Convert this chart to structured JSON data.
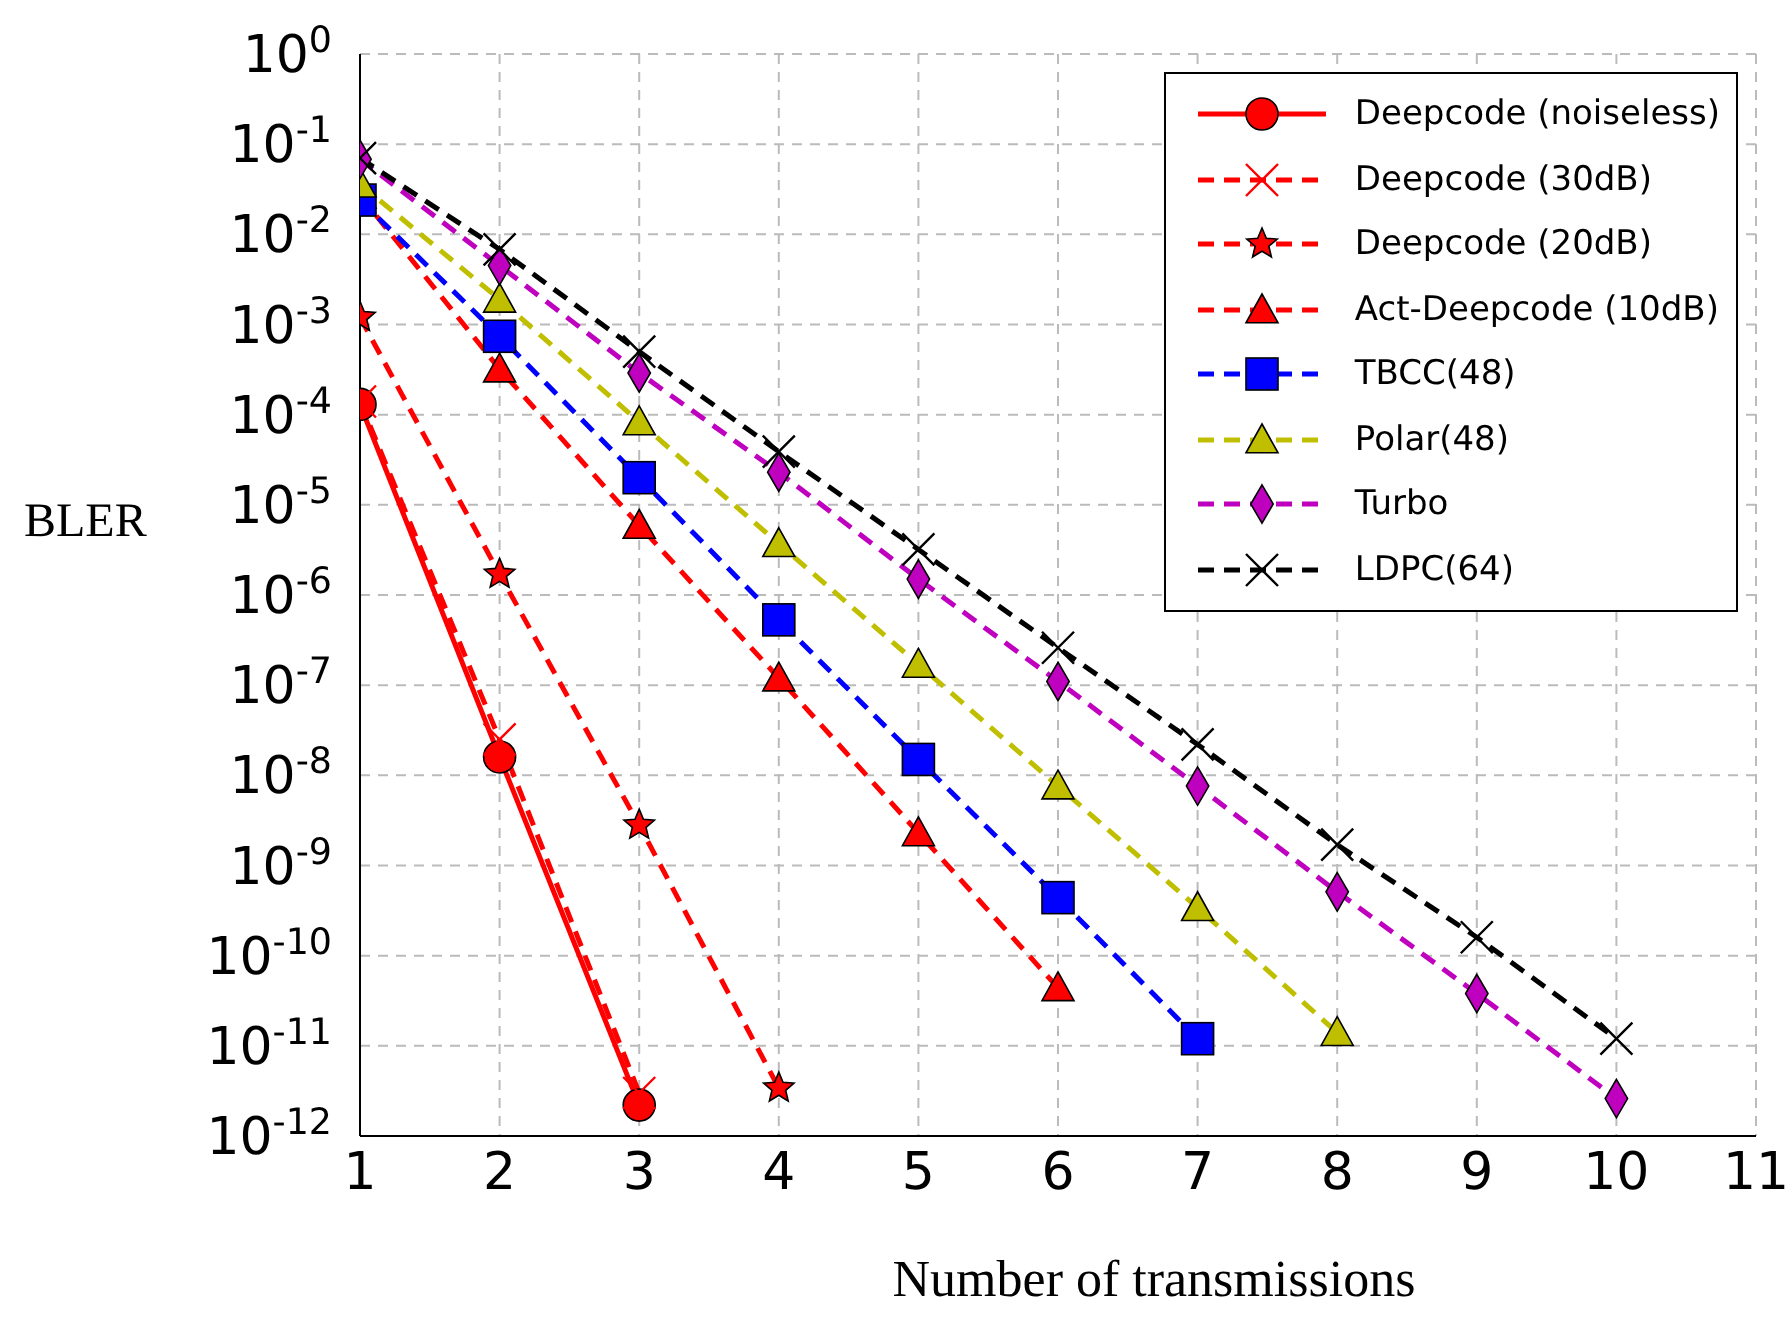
{
  "chart_data": {
    "type": "line",
    "xlabel": "Number of transmissions",
    "ylabel": "BLER",
    "x": [
      1,
      2,
      3,
      4,
      5,
      6,
      7,
      8,
      9,
      10
    ],
    "xlim": [
      1,
      11
    ],
    "xticks": [
      1,
      2,
      3,
      4,
      5,
      6,
      7,
      8,
      9,
      10,
      11
    ],
    "ylim": [
      1e-12,
      1
    ],
    "log": "y",
    "yticks": [
      {
        "value": 1,
        "label": "10$^{0}$"
      },
      {
        "value": 0.1,
        "label": "10$^{-1}$"
      },
      {
        "value": 0.01,
        "label": "10$^{-2}$"
      },
      {
        "value": 0.001,
        "label": "10$^{-3}$"
      },
      {
        "value": 0.0001,
        "label": "10$^{-4}$"
      },
      {
        "value": 1e-05,
        "label": "10$^{-5}$"
      },
      {
        "value": 1e-06,
        "label": "10$^{-6}$"
      },
      {
        "value": 1e-07,
        "label": "10$^{-7}$"
      },
      {
        "value": 1e-08,
        "label": "10$^{-8}$"
      },
      {
        "value": 1e-09,
        "label": "10$^{-9}$"
      },
      {
        "value": 1e-10,
        "label": "10$^{-10}$"
      },
      {
        "value": 1e-11,
        "label": "10$^{-11}$"
      },
      {
        "value": 1e-12,
        "label": "10$^{-12}$"
      }
    ],
    "grid": true,
    "legend": "top right",
    "series": [
      {
        "name": "Deepcode (noiseless)",
        "color": "#ff0000",
        "marker": "circle",
        "line_style": "solid",
        "values": [
          0.00013,
          1.6e-08,
          2.2e-12,
          null,
          null,
          null,
          null,
          null,
          null,
          null
        ]
      },
      {
        "name": "Deepcode (30dB)",
        "color": "#ff0000",
        "marker": "cross",
        "line_style": "dashed",
        "values": [
          0.00014,
          2.5e-08,
          3e-12,
          null,
          null,
          null,
          null,
          null,
          null,
          null
        ]
      },
      {
        "name": "Deepcode (20dB)",
        "color": "#ff0000",
        "marker": "star",
        "line_style": "dashed",
        "values": [
          0.0012,
          1.7e-06,
          2.8e-09,
          3.4e-12,
          null,
          null,
          null,
          null,
          null,
          null
        ]
      },
      {
        "name": "Act-Deepcode (10dB)",
        "color": "#ff0000",
        "marker": "triangle",
        "line_style": "dashed",
        "values": [
          0.027,
          0.00032,
          5.9e-06,
          1.2e-07,
          2.3e-09,
          4.4e-11,
          null,
          null,
          null,
          null
        ]
      },
      {
        "name": "TBCC(48)",
        "color": "#0000ff",
        "marker": "square",
        "line_style": "dashed",
        "values": [
          0.024,
          0.00074,
          2e-05,
          5.3e-07,
          1.5e-08,
          4.4e-10,
          1.2e-11,
          null,
          null,
          null
        ]
      },
      {
        "name": "Polar(48)",
        "color": "#bfbf00",
        "marker": "triangle",
        "line_style": "dashed",
        "values": [
          0.036,
          0.0019,
          8.3e-05,
          3.7e-06,
          1.7e-07,
          7.6e-09,
          3.4e-10,
          1.4e-11,
          null,
          null
        ]
      },
      {
        "name": "Turbo",
        "color": "#bf00bf",
        "marker": "diamond",
        "line_style": "dashed",
        "values": [
          0.068,
          0.0045,
          0.00029,
          2.3e-05,
          1.5e-06,
          1.1e-07,
          7.6e-09,
          5.1e-10,
          3.8e-11,
          2.6e-12
        ]
      },
      {
        "name": "LDPC(64)",
        "color": "#000000",
        "marker": "cross",
        "line_style": "dashed",
        "values": [
          0.07,
          0.0068,
          0.0005,
          3.9e-05,
          3.2e-06,
          2.6e-07,
          2.2e-08,
          1.7e-09,
          1.6e-10,
          1.2e-11
        ]
      }
    ]
  }
}
